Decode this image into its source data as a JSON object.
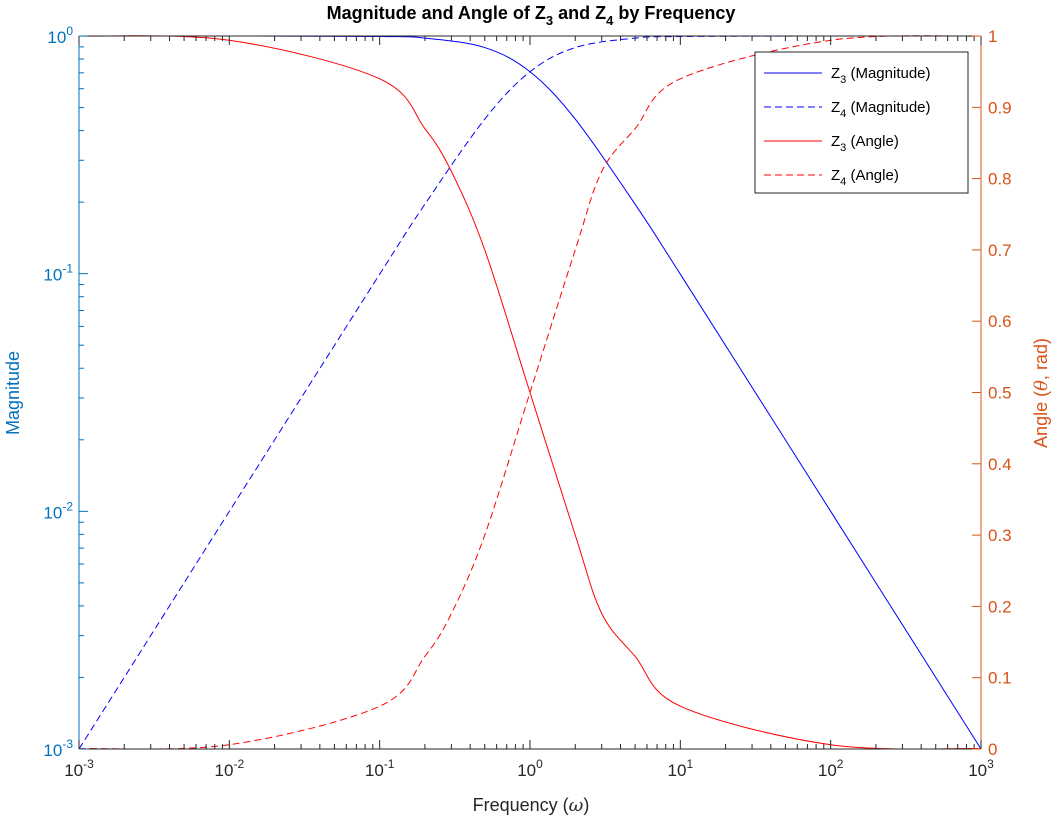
{
  "chart_data": {
    "type": "line",
    "title": {
      "pre": "Magnitude and Angle of Z",
      "sub1": "3",
      "mid": " and Z",
      "sub2": "4",
      "post": " by Frequency"
    },
    "xlabel": {
      "pre": "Frequency (",
      "sym": "ω",
      "post": ")"
    },
    "ylabel_left": "Magnitude",
    "ylabel_right": {
      "pre": "Angle (",
      "sym": "θ",
      "post": ", rad)"
    },
    "x_scale": "log",
    "xlim": [
      0.001,
      1000
    ],
    "ylim_left": [
      0.001,
      1
    ],
    "y_left_scale": "log",
    "ylim_right": [
      0,
      1
    ],
    "y_right_scale": "linear",
    "grid": false,
    "legend_position": "top-right",
    "x_ticks": [
      {
        "base": "10",
        "exp": "-3"
      },
      {
        "base": "10",
        "exp": "-2"
      },
      {
        "base": "10",
        "exp": "-1"
      },
      {
        "base": "10",
        "exp": "0"
      },
      {
        "base": "10",
        "exp": "1"
      },
      {
        "base": "10",
        "exp": "2"
      },
      {
        "base": "10",
        "exp": "3"
      }
    ],
    "y_left_ticks": [
      {
        "base": "10",
        "exp": "-3"
      },
      {
        "base": "10",
        "exp": "-2"
      },
      {
        "base": "10",
        "exp": "-1"
      },
      {
        "base": "10",
        "exp": "0"
      }
    ],
    "y_right_ticks": [
      "0",
      "0.1",
      "0.2",
      "0.3",
      "0.4",
      "0.5",
      "0.6",
      "0.7",
      "0.8",
      "0.9",
      "1"
    ],
    "colors": {
      "left_axis": "#0072bd",
      "right_axis": "#d95319",
      "magnitude": "#0000ff",
      "angle": "#ff0000"
    },
    "series": [
      {
        "name": "Z3 (Magnitude)",
        "legend": {
          "base": "Z",
          "sub": "3",
          "rest": " (Magnitude)"
        },
        "axis": "left",
        "color": "#0000ff",
        "dash": "solid",
        "x": [
          0.001,
          0.01,
          0.1,
          0.2,
          0.5,
          1,
          2,
          5,
          10,
          100,
          1000
        ],
        "y": [
          1,
          1,
          0.995,
          0.98,
          0.894,
          0.707,
          0.447,
          0.196,
          0.0995,
          0.01,
          0.001
        ]
      },
      {
        "name": "Z4 (Magnitude)",
        "legend": {
          "base": "Z",
          "sub": "4",
          "rest": " (Magnitude)"
        },
        "axis": "left",
        "color": "#0000ff",
        "dash": "dashed",
        "x": [
          0.001,
          0.01,
          0.1,
          0.2,
          0.5,
          1,
          2,
          5,
          10,
          100,
          1000
        ],
        "y": [
          0.001,
          0.01,
          0.0995,
          0.196,
          0.447,
          0.707,
          0.894,
          0.98,
          0.995,
          1,
          1
        ]
      },
      {
        "name": "Z3 (Angle)",
        "legend": {
          "base": "Z",
          "sub": "3",
          "rest": " (Angle)"
        },
        "axis": "right",
        "color": "#ff0000",
        "dash": "solid",
        "x": [
          0.001,
          0.01,
          0.1,
          0.2,
          0.3,
          0.5,
          1,
          2,
          3,
          5,
          10,
          100,
          1000
        ],
        "y": [
          1,
          0.994,
          0.94,
          0.87,
          0.81,
          0.7,
          0.5,
          0.3,
          0.19,
          0.13,
          0.06,
          0.006,
          0.0006
        ]
      },
      {
        "name": "Z4 (Angle)",
        "legend": {
          "base": "Z",
          "sub": "4",
          "rest": " (Angle)"
        },
        "axis": "right",
        "color": "#ff0000",
        "dash": "dashed",
        "x": [
          0.001,
          0.01,
          0.1,
          0.2,
          0.3,
          0.5,
          1,
          2,
          3,
          5,
          10,
          100,
          1000
        ],
        "y": [
          0.0006,
          0.006,
          0.06,
          0.13,
          0.19,
          0.3,
          0.5,
          0.7,
          0.81,
          0.87,
          0.94,
          0.994,
          1
        ]
      }
    ]
  }
}
